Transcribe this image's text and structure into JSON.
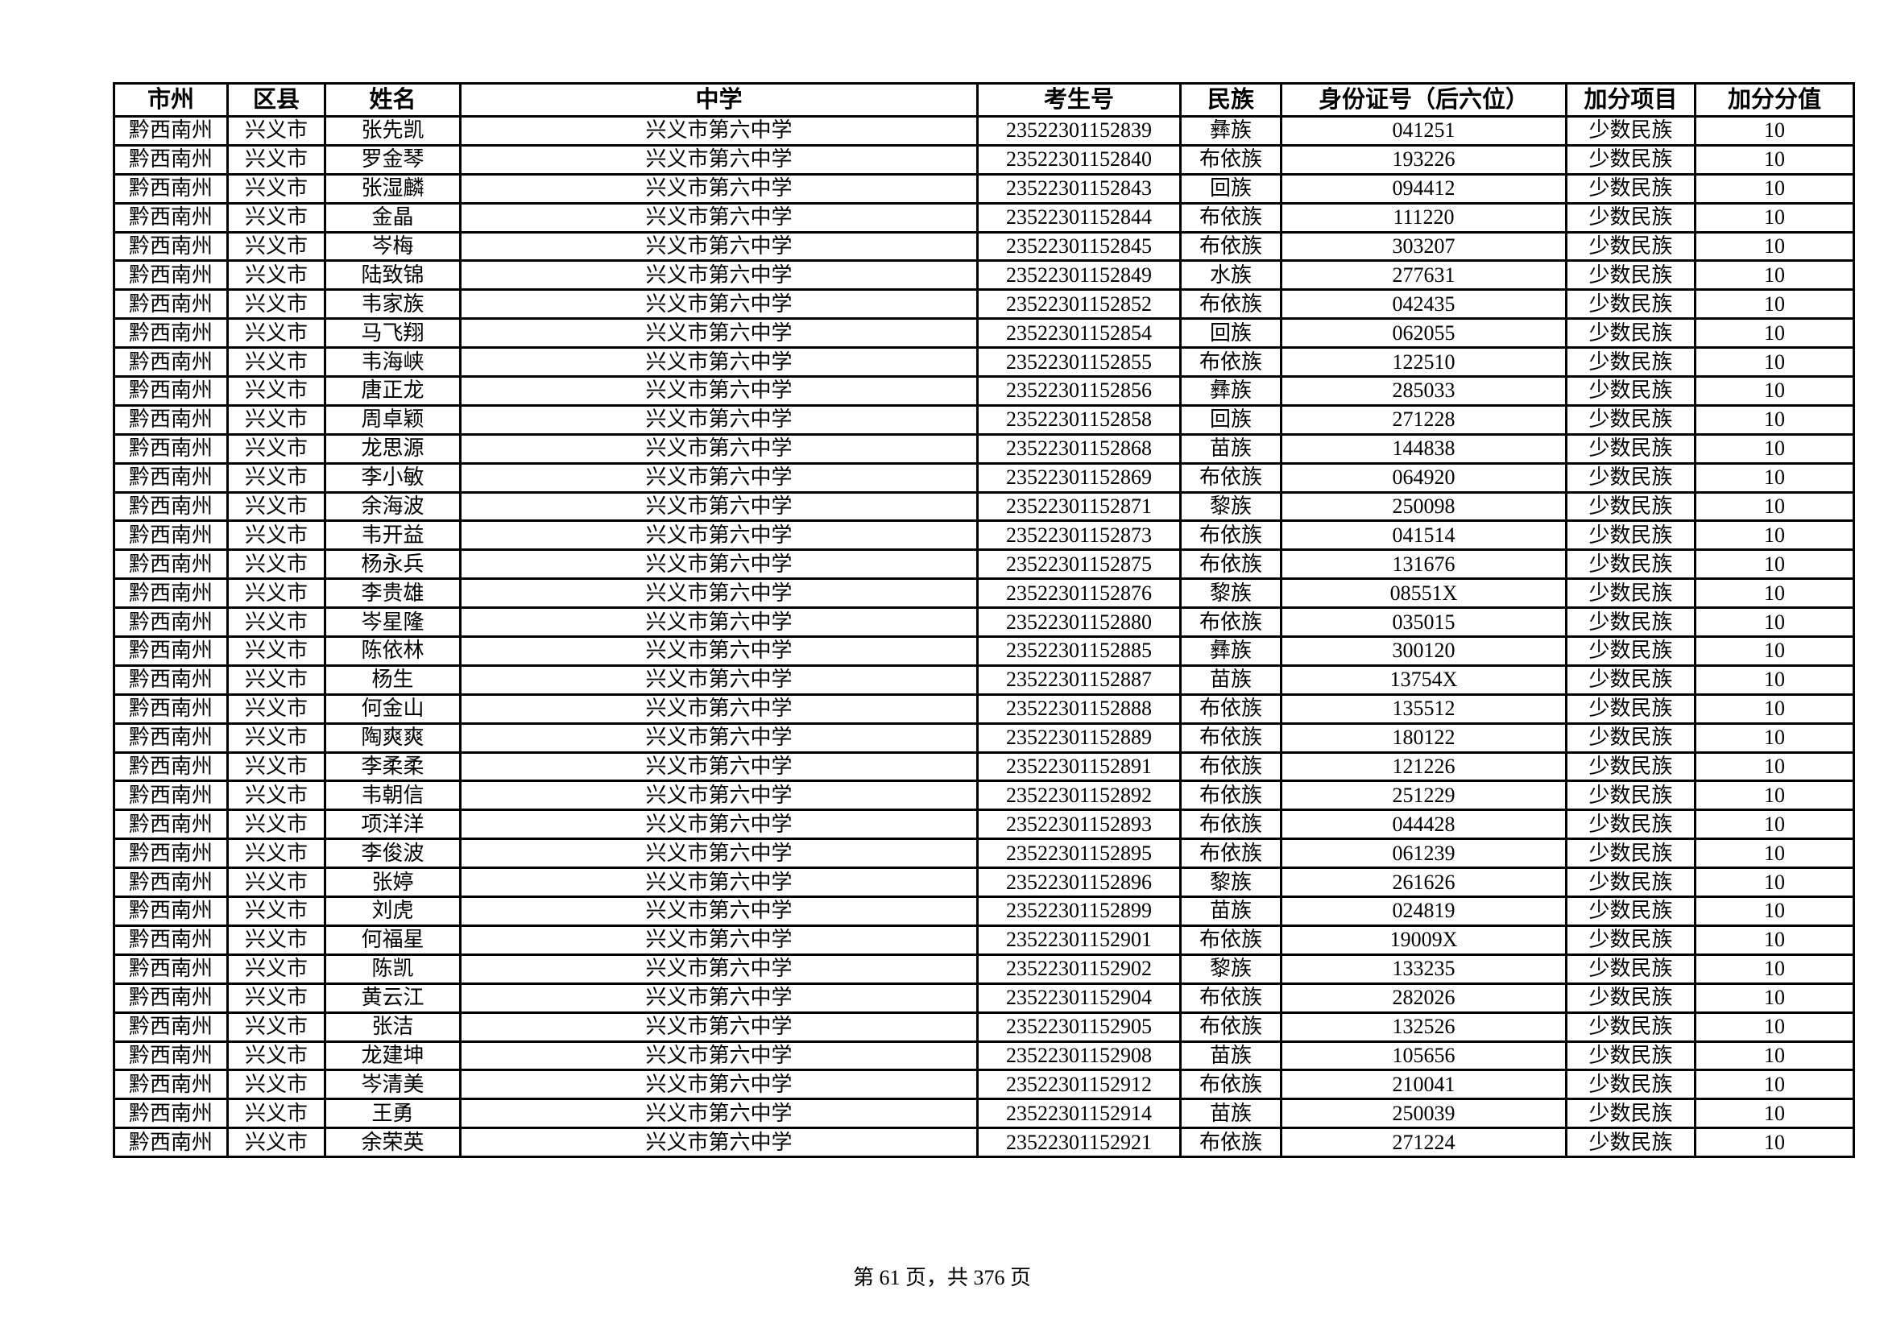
{
  "headers": [
    "市州",
    "区县",
    "姓名",
    "中学",
    "考生号",
    "民族",
    "身份证号（后六位）",
    "加分项目",
    "加分分值"
  ],
  "rows": [
    [
      "黔西南州",
      "兴义市",
      "张先凯",
      "兴义市第六中学",
      "23522301152839",
      "彝族",
      "041251",
      "少数民族",
      "10"
    ],
    [
      "黔西南州",
      "兴义市",
      "罗金琴",
      "兴义市第六中学",
      "23522301152840",
      "布依族",
      "193226",
      "少数民族",
      "10"
    ],
    [
      "黔西南州",
      "兴义市",
      "张湿麟",
      "兴义市第六中学",
      "23522301152843",
      "回族",
      "094412",
      "少数民族",
      "10"
    ],
    [
      "黔西南州",
      "兴义市",
      "金晶",
      "兴义市第六中学",
      "23522301152844",
      "布依族",
      "111220",
      "少数民族",
      "10"
    ],
    [
      "黔西南州",
      "兴义市",
      "岑梅",
      "兴义市第六中学",
      "23522301152845",
      "布依族",
      "303207",
      "少数民族",
      "10"
    ],
    [
      "黔西南州",
      "兴义市",
      "陆致锦",
      "兴义市第六中学",
      "23522301152849",
      "水族",
      "277631",
      "少数民族",
      "10"
    ],
    [
      "黔西南州",
      "兴义市",
      "韦家族",
      "兴义市第六中学",
      "23522301152852",
      "布依族",
      "042435",
      "少数民族",
      "10"
    ],
    [
      "黔西南州",
      "兴义市",
      "马飞翔",
      "兴义市第六中学",
      "23522301152854",
      "回族",
      "062055",
      "少数民族",
      "10"
    ],
    [
      "黔西南州",
      "兴义市",
      "韦海峡",
      "兴义市第六中学",
      "23522301152855",
      "布依族",
      "122510",
      "少数民族",
      "10"
    ],
    [
      "黔西南州",
      "兴义市",
      "唐正龙",
      "兴义市第六中学",
      "23522301152856",
      "彝族",
      "285033",
      "少数民族",
      "10"
    ],
    [
      "黔西南州",
      "兴义市",
      "周卓颖",
      "兴义市第六中学",
      "23522301152858",
      "回族",
      "271228",
      "少数民族",
      "10"
    ],
    [
      "黔西南州",
      "兴义市",
      "龙思源",
      "兴义市第六中学",
      "23522301152868",
      "苗族",
      "144838",
      "少数民族",
      "10"
    ],
    [
      "黔西南州",
      "兴义市",
      "李小敏",
      "兴义市第六中学",
      "23522301152869",
      "布依族",
      "064920",
      "少数民族",
      "10"
    ],
    [
      "黔西南州",
      "兴义市",
      "余海波",
      "兴义市第六中学",
      "23522301152871",
      "黎族",
      "250098",
      "少数民族",
      "10"
    ],
    [
      "黔西南州",
      "兴义市",
      "韦开益",
      "兴义市第六中学",
      "23522301152873",
      "布依族",
      "041514",
      "少数民族",
      "10"
    ],
    [
      "黔西南州",
      "兴义市",
      "杨永兵",
      "兴义市第六中学",
      "23522301152875",
      "布依族",
      "131676",
      "少数民族",
      "10"
    ],
    [
      "黔西南州",
      "兴义市",
      "李贵雄",
      "兴义市第六中学",
      "23522301152876",
      "黎族",
      "08551X",
      "少数民族",
      "10"
    ],
    [
      "黔西南州",
      "兴义市",
      "岑星隆",
      "兴义市第六中学",
      "23522301152880",
      "布依族",
      "035015",
      "少数民族",
      "10"
    ],
    [
      "黔西南州",
      "兴义市",
      "陈依林",
      "兴义市第六中学",
      "23522301152885",
      "彝族",
      "300120",
      "少数民族",
      "10"
    ],
    [
      "黔西南州",
      "兴义市",
      "杨生",
      "兴义市第六中学",
      "23522301152887",
      "苗族",
      "13754X",
      "少数民族",
      "10"
    ],
    [
      "黔西南州",
      "兴义市",
      "何金山",
      "兴义市第六中学",
      "23522301152888",
      "布依族",
      "135512",
      "少数民族",
      "10"
    ],
    [
      "黔西南州",
      "兴义市",
      "陶爽爽",
      "兴义市第六中学",
      "23522301152889",
      "布依族",
      "180122",
      "少数民族",
      "10"
    ],
    [
      "黔西南州",
      "兴义市",
      "李柔柔",
      "兴义市第六中学",
      "23522301152891",
      "布依族",
      "121226",
      "少数民族",
      "10"
    ],
    [
      "黔西南州",
      "兴义市",
      "韦朝信",
      "兴义市第六中学",
      "23522301152892",
      "布依族",
      "251229",
      "少数民族",
      "10"
    ],
    [
      "黔西南州",
      "兴义市",
      "项洋洋",
      "兴义市第六中学",
      "23522301152893",
      "布依族",
      "044428",
      "少数民族",
      "10"
    ],
    [
      "黔西南州",
      "兴义市",
      "李俊波",
      "兴义市第六中学",
      "23522301152895",
      "布依族",
      "061239",
      "少数民族",
      "10"
    ],
    [
      "黔西南州",
      "兴义市",
      "张婷",
      "兴义市第六中学",
      "23522301152896",
      "黎族",
      "261626",
      "少数民族",
      "10"
    ],
    [
      "黔西南州",
      "兴义市",
      "刘虎",
      "兴义市第六中学",
      "23522301152899",
      "苗族",
      "024819",
      "少数民族",
      "10"
    ],
    [
      "黔西南州",
      "兴义市",
      "何福星",
      "兴义市第六中学",
      "23522301152901",
      "布依族",
      "19009X",
      "少数民族",
      "10"
    ],
    [
      "黔西南州",
      "兴义市",
      "陈凯",
      "兴义市第六中学",
      "23522301152902",
      "黎族",
      "133235",
      "少数民族",
      "10"
    ],
    [
      "黔西南州",
      "兴义市",
      "黄云江",
      "兴义市第六中学",
      "23522301152904",
      "布依族",
      "282026",
      "少数民族",
      "10"
    ],
    [
      "黔西南州",
      "兴义市",
      "张洁",
      "兴义市第六中学",
      "23522301152905",
      "布依族",
      "132526",
      "少数民族",
      "10"
    ],
    [
      "黔西南州",
      "兴义市",
      "龙建坤",
      "兴义市第六中学",
      "23522301152908",
      "苗族",
      "105656",
      "少数民族",
      "10"
    ],
    [
      "黔西南州",
      "兴义市",
      "岑清美",
      "兴义市第六中学",
      "23522301152912",
      "布依族",
      "210041",
      "少数民族",
      "10"
    ],
    [
      "黔西南州",
      "兴义市",
      "王勇",
      "兴义市第六中学",
      "23522301152914",
      "苗族",
      "250039",
      "少数民族",
      "10"
    ],
    [
      "黔西南州",
      "兴义市",
      "余荣英",
      "兴义市第六中学",
      "23522301152921",
      "布依族",
      "271224",
      "少数民族",
      "10"
    ]
  ],
  "footer": "第 61 页，共 376 页"
}
